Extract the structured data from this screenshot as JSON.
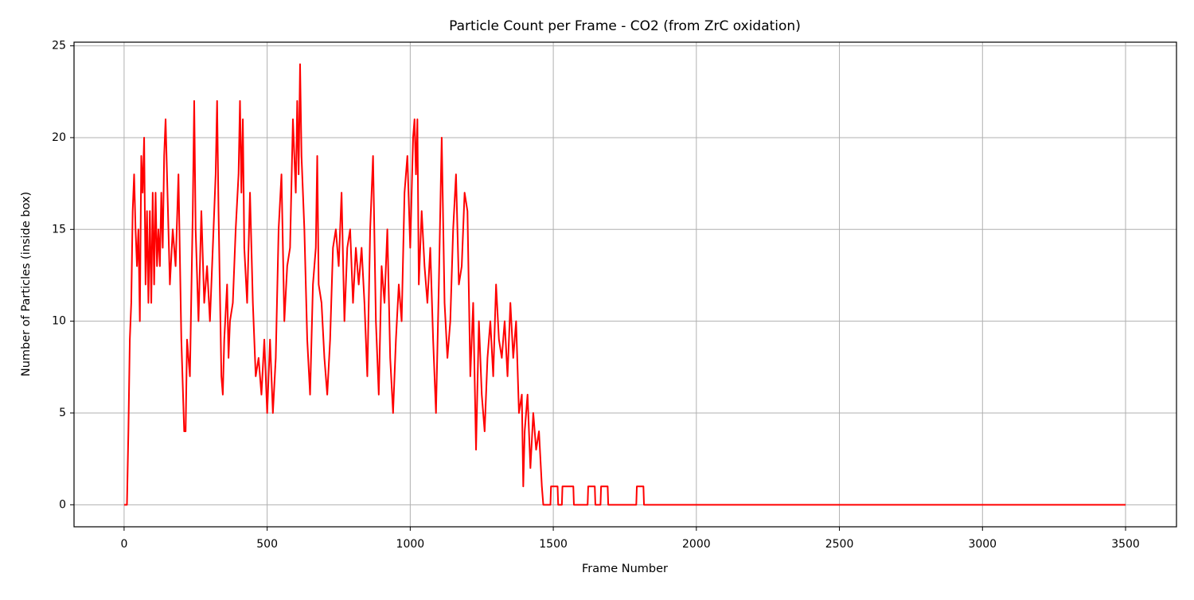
{
  "chart_data": {
    "type": "line",
    "title": "Particle Count per Frame - CO2 (from ZrC oxidation)",
    "x_label": "Frame Number",
    "y_label": "Number of Particles (inside box)",
    "color": "#ff0000",
    "grid": true,
    "xlim": [
      -175,
      3678
    ],
    "ylim": [
      -1.2,
      25.2
    ],
    "xticks": [
      0,
      500,
      1000,
      1500,
      2000,
      2500,
      3000,
      3500
    ],
    "yticks": [
      0,
      5,
      10,
      15,
      20,
      25
    ],
    "x": [
      0,
      10,
      15,
      20,
      25,
      30,
      35,
      40,
      45,
      50,
      55,
      60,
      65,
      70,
      75,
      80,
      85,
      90,
      95,
      100,
      105,
      110,
      115,
      120,
      125,
      130,
      135,
      140,
      145,
      150,
      160,
      170,
      180,
      190,
      200,
      210,
      215,
      220,
      230,
      240,
      245,
      250,
      260,
      270,
      280,
      290,
      300,
      310,
      320,
      325,
      330,
      340,
      345,
      350,
      360,
      365,
      370,
      380,
      390,
      400,
      405,
      410,
      415,
      420,
      430,
      440,
      450,
      460,
      470,
      480,
      490,
      500,
      510,
      520,
      530,
      540,
      550,
      560,
      570,
      580,
      590,
      600,
      605,
      610,
      615,
      620,
      630,
      640,
      650,
      660,
      670,
      675,
      680,
      690,
      700,
      710,
      720,
      730,
      740,
      750,
      760,
      770,
      780,
      790,
      800,
      810,
      820,
      830,
      840,
      850,
      860,
      870,
      880,
      890,
      900,
      910,
      920,
      930,
      940,
      950,
      960,
      970,
      980,
      990,
      1000,
      1010,
      1015,
      1020,
      1025,
      1030,
      1040,
      1050,
      1060,
      1070,
      1080,
      1090,
      1100,
      1110,
      1120,
      1130,
      1140,
      1150,
      1160,
      1170,
      1180,
      1190,
      1200,
      1210,
      1220,
      1230,
      1240,
      1250,
      1260,
      1270,
      1280,
      1290,
      1300,
      1310,
      1320,
      1330,
      1340,
      1350,
      1360,
      1370,
      1380,
      1390,
      1395,
      1400,
      1410,
      1420,
      1430,
      1440,
      1450,
      1460,
      1465,
      1490,
      1492,
      1515,
      1517,
      1530,
      1532,
      1570,
      1572,
      1620,
      1622,
      1645,
      1647,
      1665,
      1667,
      1690,
      1692,
      1790,
      1792,
      1815,
      1817,
      3500
    ],
    "values": [
      0,
      0,
      4,
      9,
      11,
      16,
      18,
      15,
      13,
      15,
      10,
      19,
      17,
      20,
      12,
      16,
      11,
      16,
      11,
      17,
      12,
      17,
      13,
      15,
      13,
      17,
      14,
      19,
      21,
      18,
      12,
      15,
      13,
      18,
      9,
      4,
      4,
      9,
      7,
      16,
      22,
      15,
      10,
      16,
      11,
      13,
      10,
      14,
      18,
      22,
      16,
      7,
      6,
      9,
      12,
      8,
      10,
      11,
      15,
      18,
      22,
      17,
      21,
      14,
      11,
      17,
      11,
      7,
      8,
      6,
      9,
      5,
      9,
      5,
      8,
      15,
      18,
      10,
      13,
      14,
      21,
      17,
      22,
      18,
      24,
      19,
      15,
      9,
      6,
      12,
      14,
      19,
      12,
      11,
      8,
      6,
      9,
      14,
      15,
      13,
      17,
      10,
      14,
      15,
      11,
      14,
      12,
      14,
      11,
      7,
      15,
      19,
      10,
      6,
      13,
      11,
      15,
      8,
      5,
      9,
      12,
      10,
      17,
      19,
      14,
      20,
      21,
      18,
      21,
      12,
      16,
      13,
      11,
      14,
      9,
      5,
      12,
      20,
      11,
      8,
      10,
      15,
      18,
      12,
      13,
      17,
      16,
      7,
      11,
      3,
      10,
      6,
      4,
      8,
      10,
      7,
      12,
      9,
      8,
      10,
      7,
      11,
      8,
      10,
      5,
      6,
      1,
      4,
      6,
      2,
      5,
      3,
      4,
      1,
      0,
      0,
      1,
      1,
      0,
      0,
      1,
      1,
      0,
      0,
      1,
      1,
      0,
      0,
      1,
      1,
      0,
      0,
      1,
      1,
      0,
      0
    ]
  }
}
